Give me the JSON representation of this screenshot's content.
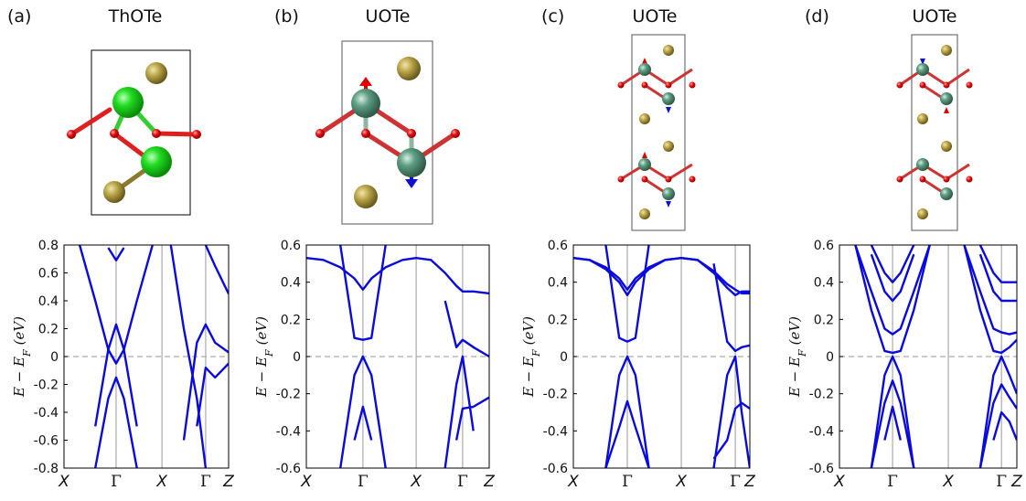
{
  "chart_data": [
    {
      "type": "line",
      "panel": "(a)",
      "title": "ThOTe",
      "y_label": "E − E",
      "y_label_sub": "F",
      "y_label_unit": "(eV)",
      "xlim": [
        0,
        3.16
      ],
      "ylim": [
        -0.8,
        0.8
      ],
      "xticks": [
        {
          "value": 0,
          "label": "X"
        },
        {
          "value": 1,
          "label": "Γ"
        },
        {
          "value": 1.88,
          "label": "X"
        },
        {
          "value": 2.72,
          "label": "Γ"
        },
        {
          "value": 3.16,
          "label": "Z"
        }
      ],
      "yticks": [
        -0.8,
        -0.6,
        -0.4,
        -0.2,
        0,
        0.2,
        0.4,
        0.6,
        0.8
      ],
      "hline": 0,
      "x": [
        0,
        0.3,
        0.6,
        0.85,
        1,
        1.15,
        1.4,
        1.7,
        1.88,
        2.05,
        2.3,
        2.55,
        2.72,
        2.9,
        3.16
      ],
      "color": "#0a0adc",
      "series": [
        {
          "values": [
            null,
            0.8,
            0.4,
            0.05,
            -0.05,
            0.05,
            0.4,
            0.8,
            null,
            null,
            null,
            null,
            null,
            null,
            null
          ]
        },
        {
          "values": [
            null,
            null,
            -0.8,
            -0.3,
            -0.15,
            -0.3,
            -0.8,
            null,
            null,
            null,
            null,
            null,
            null,
            null,
            null
          ]
        },
        {
          "values": [
            null,
            null,
            -0.5,
            0.05,
            0.23,
            0.05,
            -0.5,
            null,
            null,
            null,
            null,
            null,
            null,
            null,
            null
          ]
        },
        {
          "values": [
            null,
            null,
            null,
            0.78,
            0.69,
            0.78,
            null,
            null,
            null,
            null,
            null,
            null,
            null,
            null,
            null
          ]
        },
        {
          "values": [
            null,
            null,
            null,
            null,
            null,
            null,
            null,
            null,
            null,
            0.8,
            0.2,
            -0.3,
            -0.8,
            null,
            null
          ]
        },
        {
          "values": [
            null,
            null,
            null,
            null,
            null,
            null,
            null,
            null,
            null,
            null,
            -0.6,
            0.1,
            0.23,
            0.1,
            0.03
          ]
        },
        {
          "values": [
            null,
            null,
            null,
            null,
            null,
            null,
            null,
            null,
            null,
            null,
            null,
            -0.5,
            -0.08,
            -0.15,
            -0.05
          ]
        },
        {
          "values": [
            null,
            null,
            null,
            null,
            null,
            null,
            null,
            null,
            null,
            null,
            null,
            null,
            0.8,
            0.65,
            0.45
          ]
        }
      ]
    },
    {
      "type": "line",
      "panel": "(b)",
      "title": "UOTe",
      "y_label": "E − E",
      "y_label_sub": "F",
      "y_label_unit": "(eV)",
      "xlim": [
        0,
        3.23
      ],
      "ylim": [
        -0.6,
        0.6
      ],
      "xticks": [
        {
          "value": 0,
          "label": "X"
        },
        {
          "value": 1,
          "label": "Γ"
        },
        {
          "value": 1.94,
          "label": "X"
        },
        {
          "value": 2.76,
          "label": "Γ"
        },
        {
          "value": 3.23,
          "label": "Z"
        }
      ],
      "yticks": [
        -0.6,
        -0.4,
        -0.2,
        0,
        0.2,
        0.4,
        0.6
      ],
      "hline": 0,
      "x": [
        0,
        0.3,
        0.6,
        0.85,
        1,
        1.15,
        1.4,
        1.7,
        1.94,
        2.2,
        2.45,
        2.65,
        2.76,
        2.95,
        3.23
      ],
      "color": "#0a0adc",
      "series": [
        {
          "values": [
            0.53,
            0.52,
            0.48,
            0.42,
            0.36,
            0.42,
            0.48,
            0.52,
            0.53,
            0.52,
            0.45,
            0.38,
            0.35,
            0.35,
            0.34
          ]
        },
        {
          "values": [
            null,
            null,
            0.6,
            0.1,
            0.09,
            0.1,
            0.6,
            null,
            null,
            null,
            0.3,
            0.05,
            0.09,
            0.05,
            0.0
          ]
        },
        {
          "values": [
            null,
            null,
            -0.6,
            -0.1,
            0.0,
            -0.1,
            -0.6,
            null,
            null,
            null,
            -0.6,
            -0.15,
            0.0,
            -0.4,
            null
          ]
        },
        {
          "values": [
            null,
            null,
            null,
            -0.45,
            -0.27,
            -0.45,
            null,
            null,
            null,
            null,
            null,
            -0.45,
            -0.28,
            -0.27,
            -0.22
          ]
        }
      ]
    },
    {
      "type": "line",
      "panel": "(c)",
      "title": "UOTe",
      "y_label": "E − E",
      "y_label_sub": "F",
      "y_label_unit": "(eV)",
      "xlim": [
        0,
        3.27
      ],
      "ylim": [
        -0.6,
        0.6
      ],
      "xticks": [
        {
          "value": 0,
          "label": "X"
        },
        {
          "value": 1,
          "label": "Γ"
        },
        {
          "value": 2,
          "label": "X"
        },
        {
          "value": 3,
          "label": "Γ"
        },
        {
          "value": 3.27,
          "label": "Z"
        }
      ],
      "yticks": [
        -0.6,
        -0.4,
        -0.2,
        0,
        0.2,
        0.4,
        0.6
      ],
      "hline": 0,
      "x": [
        0,
        0.3,
        0.6,
        0.85,
        1,
        1.15,
        1.4,
        1.7,
        2,
        2.3,
        2.6,
        2.85,
        3,
        3.12,
        3.27
      ],
      "color": "#0a0adc",
      "series": [
        {
          "values": [
            0.53,
            0.52,
            0.47,
            0.4,
            0.33,
            0.4,
            0.47,
            0.52,
            0.53,
            0.52,
            0.46,
            0.39,
            0.36,
            0.34,
            0.34
          ]
        },
        {
          "values": [
            0.53,
            0.52,
            0.48,
            0.42,
            0.36,
            0.42,
            0.48,
            0.52,
            0.53,
            0.52,
            0.45,
            0.37,
            0.33,
            0.35,
            0.35
          ]
        },
        {
          "values": [
            null,
            null,
            0.6,
            0.1,
            0.08,
            0.1,
            0.6,
            null,
            null,
            null,
            0.5,
            0.08,
            0.03,
            0.05,
            0.06
          ]
        },
        {
          "values": [
            null,
            null,
            -0.6,
            -0.1,
            0.0,
            -0.1,
            -0.6,
            null,
            null,
            null,
            -0.6,
            -0.1,
            0.0,
            -0.3,
            -0.6
          ]
        },
        {
          "values": [
            null,
            null,
            -0.6,
            -0.38,
            -0.24,
            -0.38,
            -0.6,
            null,
            null,
            null,
            -0.55,
            -0.45,
            -0.28,
            -0.25,
            -0.28
          ]
        }
      ]
    },
    {
      "type": "line",
      "panel": "(d)",
      "title": "UOTe",
      "y_label": "E − E",
      "y_label_sub": "F",
      "y_label_unit": "(eV)",
      "xlim": [
        0,
        3.34
      ],
      "ylim": [
        -0.6,
        0.6
      ],
      "xticks": [
        {
          "value": 0,
          "label": "X"
        },
        {
          "value": 1,
          "label": "Γ"
        },
        {
          "value": 2.05,
          "label": "X"
        },
        {
          "value": 3.05,
          "label": "Γ"
        },
        {
          "value": 3.34,
          "label": "Z"
        }
      ],
      "yticks": [
        -0.6,
        -0.4,
        -0.2,
        0,
        0.2,
        0.4,
        0.6
      ],
      "hline": 0,
      "x": [
        0,
        0.3,
        0.6,
        0.85,
        1,
        1.15,
        1.4,
        1.7,
        2.05,
        2.35,
        2.65,
        2.9,
        3.05,
        3.2,
        3.34
      ],
      "color": "#0a0adc",
      "series": [
        {
          "values": [
            null,
            null,
            0.6,
            0.45,
            0.4,
            0.45,
            0.6,
            null,
            null,
            null,
            0.6,
            0.45,
            0.4,
            0.4,
            0.4
          ]
        },
        {
          "values": [
            null,
            null,
            0.55,
            0.35,
            0.3,
            0.35,
            0.55,
            null,
            null,
            null,
            0.55,
            0.35,
            0.3,
            0.3,
            0.3
          ]
        },
        {
          "values": [
            null,
            0.6,
            0.35,
            0.15,
            0.12,
            0.15,
            0.35,
            0.6,
            null,
            0.6,
            0.35,
            0.15,
            0.13,
            0.12,
            0.13
          ]
        },
        {
          "values": [
            null,
            0.6,
            0.25,
            0.03,
            0.02,
            0.03,
            0.25,
            0.6,
            null,
            0.6,
            0.25,
            0.03,
            0.02,
            0.05,
            0.09
          ]
        },
        {
          "values": [
            null,
            null,
            -0.6,
            -0.1,
            0.0,
            -0.1,
            -0.6,
            null,
            null,
            null,
            -0.6,
            -0.1,
            0.0,
            -0.1,
            -0.2
          ]
        },
        {
          "values": [
            null,
            null,
            -0.6,
            -0.25,
            -0.13,
            -0.25,
            -0.6,
            null,
            null,
            null,
            -0.6,
            -0.25,
            -0.15,
            -0.22,
            -0.28
          ]
        },
        {
          "values": [
            null,
            null,
            null,
            -0.45,
            -0.27,
            -0.45,
            null,
            null,
            null,
            null,
            null,
            -0.45,
            -0.3,
            -0.35,
            -0.45
          ]
        }
      ]
    }
  ]
}
